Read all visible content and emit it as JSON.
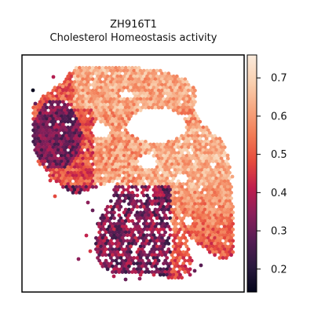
{
  "chart_data": {
    "type": "heatmap",
    "title_line1": "ZH916T1",
    "title_line2": "Cholesterol Homeostasis activity",
    "xlabel": "",
    "ylabel": "",
    "colorbar": {
      "range": [
        0.14,
        0.76
      ],
      "ticks": [
        0.2,
        0.3,
        0.4,
        0.5,
        0.6,
        0.7
      ],
      "tick_labels": [
        "0.2",
        "0.3",
        "0.4",
        "0.5",
        "0.6",
        "0.7"
      ],
      "colormap": "rocket",
      "colors": [
        "#03051a",
        "#2b1a3f",
        "#561d54",
        "#8a1f5a",
        "#bf1e4d",
        "#e64b3d",
        "#f27b55",
        "#f6a67f",
        "#f9cfae",
        "#faebdd"
      ]
    },
    "grid": false,
    "legend": "colorbar-right",
    "spatial_points_description_regions": [
      {
        "region": "left-lobe",
        "level": 0.3
      },
      {
        "region": "top-band",
        "level": 0.62
      },
      {
        "region": "right-arc",
        "level": 0.63
      },
      {
        "region": "lower-tail",
        "level": 0.28
      }
    ]
  }
}
